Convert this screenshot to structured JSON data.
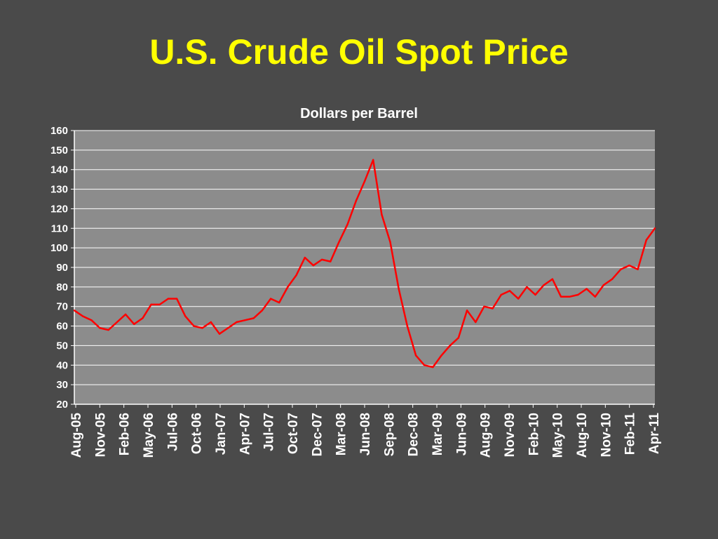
{
  "slide": {
    "title": "U.S. Crude Oil Spot Price"
  },
  "colors": {
    "background": "#4a4a4a",
    "plot_area": "#8c8c8c",
    "gridline": "#ffffff",
    "series": "#ff0000",
    "title": "#ffff00",
    "text": "#ffffff"
  },
  "chart_data": {
    "type": "line",
    "title": "Dollars per Barrel",
    "xlabel": "",
    "ylabel": "",
    "ylim": [
      20,
      160
    ],
    "yticks": [
      20,
      30,
      40,
      50,
      60,
      70,
      80,
      90,
      100,
      110,
      120,
      130,
      140,
      150,
      160
    ],
    "xlim": [
      "2005-08",
      "2011-04"
    ],
    "xtick_labels": [
      "Aug-05",
      "Nov-05",
      "Feb-06",
      "May-06",
      "Jul-06",
      "Oct-06",
      "Jan-07",
      "Apr-07",
      "Jul-07",
      "Oct-07",
      "Dec-07",
      "Mar-08",
      "Jun-08",
      "Sep-08",
      "Dec-08",
      "Mar-09",
      "Jun-09",
      "Aug-09",
      "Nov-09",
      "Feb-10",
      "May-10",
      "Aug-10",
      "Nov-10",
      "Feb-11",
      "Apr-11"
    ],
    "grid": true,
    "legend": "none",
    "series": [
      {
        "x": [
          "2005-08",
          "2005-09",
          "2005-10",
          "2005-11",
          "2005-12",
          "2006-01",
          "2006-02",
          "2006-03",
          "2006-04",
          "2006-05",
          "2006-06",
          "2006-07",
          "2006-08",
          "2006-09",
          "2006-10",
          "2006-11",
          "2006-12",
          "2007-01",
          "2007-02",
          "2007-03",
          "2007-04",
          "2007-05",
          "2007-06",
          "2007-07",
          "2007-08",
          "2007-09",
          "2007-10",
          "2007-11",
          "2007-12",
          "2008-01",
          "2008-02",
          "2008-03",
          "2008-04",
          "2008-05",
          "2008-06",
          "2008-07",
          "2008-08",
          "2008-09",
          "2008-10",
          "2008-11",
          "2008-12",
          "2009-01",
          "2009-02",
          "2009-03",
          "2009-04",
          "2009-05",
          "2009-06",
          "2009-07",
          "2009-08",
          "2009-09",
          "2009-10",
          "2009-11",
          "2009-12",
          "2010-01",
          "2010-02",
          "2010-03",
          "2010-04",
          "2010-05",
          "2010-06",
          "2010-07",
          "2010-08",
          "2010-09",
          "2010-10",
          "2010-11",
          "2010-12",
          "2011-01",
          "2011-02",
          "2011-03",
          "2011-04"
        ],
        "values": [
          68,
          65,
          63,
          59,
          58,
          62,
          66,
          61,
          64,
          71,
          71,
          74,
          74,
          65,
          60,
          59,
          62,
          56,
          59,
          62,
          63,
          64,
          68,
          74,
          72,
          80,
          86,
          95,
          91,
          94,
          93,
          103,
          112,
          124,
          134,
          145,
          117,
          103,
          79,
          60,
          45,
          40,
          39,
          45,
          50,
          54,
          68,
          62,
          70,
          69,
          76,
          78,
          74,
          80,
          76,
          81,
          84,
          75,
          75,
          76,
          79,
          75,
          81,
          84,
          89,
          91,
          89,
          104,
          110
        ]
      }
    ]
  }
}
